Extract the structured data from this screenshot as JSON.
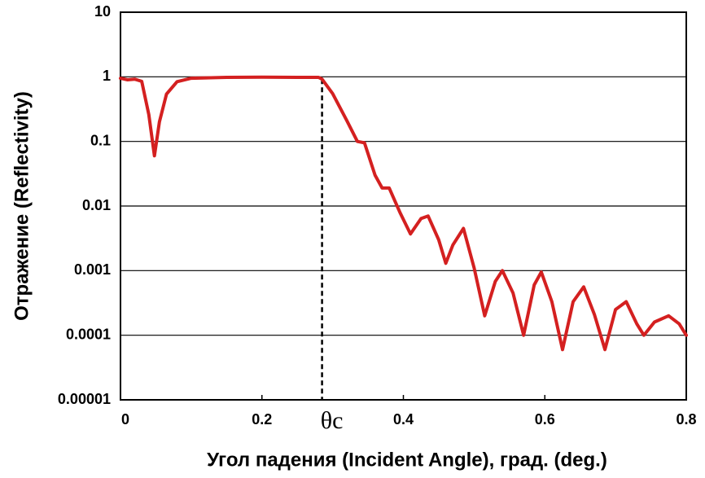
{
  "chart_data": {
    "type": "line",
    "xlabel": "Угол падения (Incident Angle), град. (deg.)",
    "ylabel": "Отражение (Reflectivity)",
    "log_y": true,
    "grid": true,
    "xlim": [
      0,
      0.8
    ],
    "ylim": [
      1e-05,
      10
    ],
    "xticks": [
      0,
      0.2,
      0.4,
      0.6,
      0.8
    ],
    "yticks": [
      10,
      1,
      0.1,
      0.01,
      0.001,
      0.0001,
      1e-05
    ],
    "annotation": {
      "text": "θc",
      "x": 0.285
    },
    "series": [
      {
        "color": "#d42020",
        "x": [
          0,
          0.01,
          0.02,
          0.03,
          0.04,
          0.048,
          0.055,
          0.065,
          0.08,
          0.1,
          0.15,
          0.2,
          0.25,
          0.28,
          0.285,
          0.3,
          0.32,
          0.335,
          0.345,
          0.36,
          0.37,
          0.38,
          0.395,
          0.41,
          0.425,
          0.435,
          0.45,
          0.46,
          0.47,
          0.485,
          0.5,
          0.515,
          0.53,
          0.54,
          0.555,
          0.57,
          0.585,
          0.595,
          0.61,
          0.625,
          0.64,
          0.655,
          0.67,
          0.685,
          0.7,
          0.715,
          0.73,
          0.74,
          0.755,
          0.775,
          0.79,
          0.8
        ],
        "values": [
          0.95,
          0.9,
          0.92,
          0.85,
          0.26,
          0.06,
          0.2,
          0.54,
          0.84,
          0.95,
          0.98,
          0.99,
          0.98,
          0.98,
          0.92,
          0.55,
          0.21,
          0.1,
          0.095,
          0.03,
          0.019,
          0.019,
          0.008,
          0.0037,
          0.0064,
          0.007,
          0.003,
          0.0013,
          0.0025,
          0.0045,
          0.0011,
          0.0002,
          0.00068,
          0.001,
          0.00045,
          0.0001,
          0.0006,
          0.00095,
          0.00033,
          6e-05,
          0.00033,
          0.00056,
          0.00021,
          6e-05,
          0.00025,
          0.00033,
          0.00015,
          0.0001,
          0.00016,
          0.0002,
          0.00015,
          0.0001
        ]
      }
    ]
  }
}
